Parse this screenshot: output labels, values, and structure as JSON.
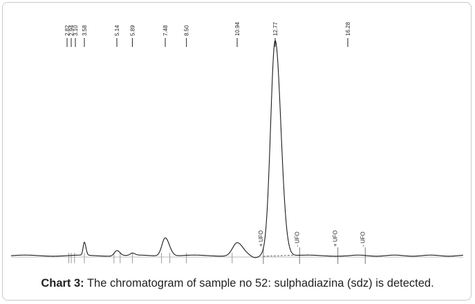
{
  "caption": {
    "label": "Chart 3:",
    "text": "The chromatogram of sample no 52: sulphadiazina (sdz) is detected."
  },
  "chart_data": {
    "type": "line",
    "x_unit": "retention time",
    "xlim": [
      0,
      25
    ],
    "ylim": [
      0,
      100
    ],
    "retention_times": [
      {
        "label": "2.82",
        "x": 2.82
      },
      {
        "label": "2.94",
        "x": 2.94
      },
      {
        "label": "3.10",
        "x": 3.1
      },
      {
        "label": "3.58",
        "x": 3.58
      },
      {
        "label": "5.14",
        "x": 5.14
      },
      {
        "label": "5.89",
        "x": 5.89
      },
      {
        "label": "7.48",
        "x": 7.48
      },
      {
        "label": "8.50",
        "x": 8.5
      },
      {
        "label": "10.94",
        "x": 10.94
      },
      {
        "label": "12.77",
        "x": 12.77
      },
      {
        "label": "16.28",
        "x": 16.28
      }
    ],
    "events": [
      {
        "label": "+ UFO",
        "x": 12.2
      },
      {
        "label": "- UFO",
        "x": 13.95
      },
      {
        "label": "+ UFO",
        "x": 15.8
      },
      {
        "label": "- UFO",
        "x": 17.6
      }
    ],
    "peaks": [
      {
        "x": 3.58,
        "height": 6,
        "width": 0.06
      },
      {
        "x": 5.14,
        "height": 2.5,
        "width": 0.12
      },
      {
        "x": 5.89,
        "height": 1,
        "width": 0.1
      },
      {
        "x": 7.48,
        "height": 8.5,
        "width": 0.16
      },
      {
        "x": 10.94,
        "height": 6,
        "width": 0.22
      },
      {
        "x": 12.77,
        "height": 100,
        "width": 0.22
      }
    ]
  }
}
